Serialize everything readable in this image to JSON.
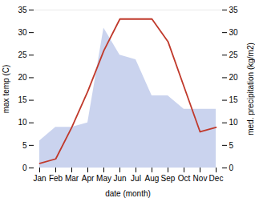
{
  "chart_data": {
    "type": "line",
    "categories": [
      "Jan",
      "Feb",
      "Mar",
      "Apr",
      "May",
      "Jun",
      "Jul",
      "Aug",
      "Sep",
      "Oct",
      "Nov",
      "Dec"
    ],
    "series": [
      {
        "type": "area",
        "color": "#b8c4e8",
        "values": [
          6,
          9,
          9,
          10,
          31,
          25,
          24,
          16,
          16,
          13,
          13,
          13
        ]
      },
      {
        "type": "line",
        "color": "#c0392b",
        "values": [
          1,
          2,
          9,
          17,
          26,
          33,
          33,
          33,
          28,
          18,
          8,
          9
        ]
      }
    ],
    "xlabel": "date (month)",
    "ylabel": "max temp (C)",
    "y2label": "med. precipitation (kg/m2)",
    "ylim": [
      0,
      35
    ],
    "yticks": [
      0,
      5,
      10,
      15,
      20,
      25,
      30,
      35
    ],
    "y2lim": [
      0,
      35
    ],
    "y2ticks": [
      0,
      5,
      10,
      15,
      20,
      25,
      30,
      35
    ]
  }
}
